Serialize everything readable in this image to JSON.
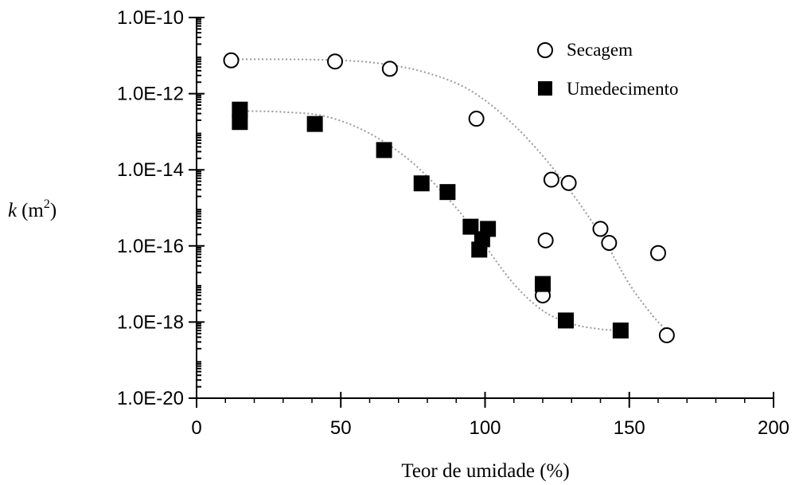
{
  "chart_data": {
    "type": "scatter",
    "title": "",
    "xlabel": "Teor de umidade (%)",
    "ylabel": {
      "symbol": "k",
      "unit": "(m",
      "exponent": "2",
      "close": ")"
    },
    "xlim": [
      0,
      200
    ],
    "ylim": [
      1e-20,
      1e-10
    ],
    "yscale": "log",
    "x_ticks": [
      0,
      50,
      100,
      150,
      200
    ],
    "x_tick_labels": [
      "0",
      "50",
      "100",
      "150",
      "200"
    ],
    "y_ticks": [
      1e-20,
      1e-18,
      1e-16,
      1e-14,
      1e-12,
      1e-10
    ],
    "y_tick_labels": [
      "1.0E-20",
      "1.0E-18",
      "1.0E-16",
      "1.0E-14",
      "1.0E-12",
      "1.0E-10"
    ],
    "grid": false,
    "legend_position": "top-right",
    "series": [
      {
        "name": "Secagem",
        "marker": "open-circle",
        "color": "#000000",
        "points": [
          [
            12,
            7.5e-12
          ],
          [
            48,
            7e-12
          ],
          [
            67,
            4.5e-12
          ],
          [
            97,
            2.2e-13
          ],
          [
            123,
            5.5e-15
          ],
          [
            129,
            4.5e-15
          ],
          [
            121,
            1.4e-16
          ],
          [
            140,
            2.8e-16
          ],
          [
            143,
            1.2e-16
          ],
          [
            160,
            6.5e-17
          ],
          [
            120,
            5e-18
          ],
          [
            163,
            4.5e-19
          ]
        ],
        "trend": [
          [
            13,
            8e-12
          ],
          [
            30,
            8e-12
          ],
          [
            50,
            7.5e-12
          ],
          [
            65,
            6e-12
          ],
          [
            80,
            3.5e-12
          ],
          [
            95,
            1.2e-12
          ],
          [
            110,
            1.5e-13
          ],
          [
            125,
            8e-15
          ],
          [
            140,
            2e-16
          ],
          [
            150,
            1e-17
          ],
          [
            158,
            1.5e-18
          ],
          [
            163,
            6e-19
          ]
        ]
      },
      {
        "name": "Umedecimento",
        "marker": "filled-square",
        "color": "#000000",
        "points": [
          [
            15,
            3.8e-13
          ],
          [
            15,
            1.8e-13
          ],
          [
            41,
            1.6e-13
          ],
          [
            65,
            3.3e-14
          ],
          [
            78,
            4.4e-15
          ],
          [
            87,
            2.6e-15
          ],
          [
            95,
            3.2e-16
          ],
          [
            101,
            2.8e-16
          ],
          [
            99,
            1.5e-16
          ],
          [
            98,
            8e-17
          ],
          [
            120,
            1e-17
          ],
          [
            128,
            1.1e-18
          ],
          [
            147,
            6e-19
          ]
        ],
        "trend": [
          [
            15,
            3.5e-13
          ],
          [
            30,
            3.3e-13
          ],
          [
            45,
            2.5e-13
          ],
          [
            60,
            9e-14
          ],
          [
            75,
            1.5e-14
          ],
          [
            90,
            1e-15
          ],
          [
            100,
            1e-16
          ],
          [
            110,
            1e-17
          ],
          [
            120,
            2e-18
          ],
          [
            130,
            9e-19
          ],
          [
            140,
            6.5e-19
          ],
          [
            147,
            6e-19
          ]
        ]
      }
    ]
  }
}
